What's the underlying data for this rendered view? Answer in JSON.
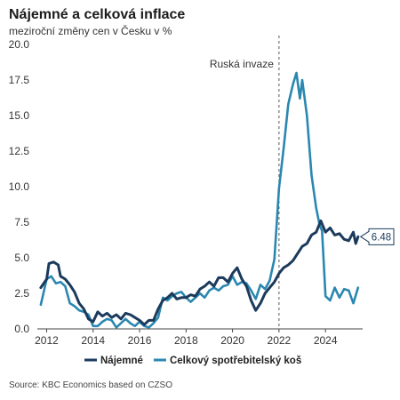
{
  "title": "Nájemné a celková inflace",
  "subtitle": "meziroční změny cen v Česku v  %",
  "source": "Source: KBC Economics based on CZSO",
  "chart_data": {
    "type": "line",
    "title": "Nájemné a celková inflace",
    "subtitle": "meziroční změny cen v Česku v  %",
    "xlabel": "",
    "ylabel": "",
    "xlim": [
      2011.6,
      2025.6
    ],
    "ylim": [
      0,
      20
    ],
    "x_ticks": [
      2012,
      2014,
      2016,
      2018,
      2020,
      2022,
      2024
    ],
    "y_ticks": [
      "0.0",
      "2.5",
      "5.0",
      "7.5",
      "10.0",
      "12.5",
      "15.0",
      "17.5",
      "20.0"
    ],
    "grid": false,
    "legend_position": "bottom",
    "annotation": {
      "label": "Ruská invaze",
      "x": 2022.0
    },
    "callout": {
      "label": "6.48",
      "x": 2025.4,
      "y": 6.48
    },
    "colors": {
      "rent": "#1b3a5c",
      "cpi": "#2a87b0"
    },
    "series": [
      {
        "name": "Nájemné",
        "key": "rent",
        "points": [
          [
            2011.75,
            2.9
          ],
          [
            2012.0,
            3.5
          ],
          [
            2012.1,
            4.6
          ],
          [
            2012.3,
            4.7
          ],
          [
            2012.5,
            4.5
          ],
          [
            2012.6,
            3.7
          ],
          [
            2012.8,
            3.5
          ],
          [
            2013.0,
            3.1
          ],
          [
            2013.2,
            2.6
          ],
          [
            2013.4,
            1.8
          ],
          [
            2013.6,
            1.4
          ],
          [
            2013.8,
            0.7
          ],
          [
            2014.0,
            0.5
          ],
          [
            2014.2,
            1.2
          ],
          [
            2014.4,
            0.9
          ],
          [
            2014.6,
            1.1
          ],
          [
            2014.8,
            0.8
          ],
          [
            2015.0,
            1.0
          ],
          [
            2015.2,
            0.7
          ],
          [
            2015.4,
            1.1
          ],
          [
            2015.6,
            1.0
          ],
          [
            2015.8,
            0.8
          ],
          [
            2016.0,
            0.6
          ],
          [
            2016.2,
            0.3
          ],
          [
            2016.4,
            0.6
          ],
          [
            2016.6,
            0.6
          ],
          [
            2016.8,
            1.4
          ],
          [
            2017.0,
            2.0
          ],
          [
            2017.2,
            2.2
          ],
          [
            2017.4,
            2.5
          ],
          [
            2017.6,
            2.1
          ],
          [
            2017.8,
            2.2
          ],
          [
            2018.0,
            2.2
          ],
          [
            2018.2,
            2.4
          ],
          [
            2018.4,
            2.3
          ],
          [
            2018.6,
            2.8
          ],
          [
            2018.8,
            3.0
          ],
          [
            2019.0,
            3.3
          ],
          [
            2019.2,
            3.0
          ],
          [
            2019.4,
            3.6
          ],
          [
            2019.6,
            3.6
          ],
          [
            2019.8,
            3.3
          ],
          [
            2020.0,
            3.9
          ],
          [
            2020.2,
            4.3
          ],
          [
            2020.4,
            3.5
          ],
          [
            2020.6,
            3.0
          ],
          [
            2020.8,
            2.0
          ],
          [
            2021.0,
            1.3
          ],
          [
            2021.2,
            1.8
          ],
          [
            2021.4,
            2.5
          ],
          [
            2021.6,
            2.9
          ],
          [
            2021.8,
            3.3
          ],
          [
            2022.0,
            3.9
          ],
          [
            2022.2,
            4.3
          ],
          [
            2022.4,
            4.5
          ],
          [
            2022.6,
            4.8
          ],
          [
            2022.8,
            5.3
          ],
          [
            2023.0,
            5.8
          ],
          [
            2023.2,
            6.0
          ],
          [
            2023.4,
            6.6
          ],
          [
            2023.6,
            6.8
          ],
          [
            2023.8,
            7.6
          ],
          [
            2024.0,
            6.8
          ],
          [
            2024.2,
            7.1
          ],
          [
            2024.4,
            6.6
          ],
          [
            2024.6,
            6.7
          ],
          [
            2024.8,
            6.3
          ],
          [
            2025.0,
            6.2
          ],
          [
            2025.2,
            6.8
          ],
          [
            2025.3,
            6.0
          ],
          [
            2025.4,
            6.48
          ]
        ]
      },
      {
        "name": "Celkový spotřebitelský koš",
        "key": "cpi",
        "points": [
          [
            2011.75,
            1.7
          ],
          [
            2012.0,
            3.5
          ],
          [
            2012.2,
            3.7
          ],
          [
            2012.4,
            3.2
          ],
          [
            2012.6,
            3.3
          ],
          [
            2012.8,
            3.0
          ],
          [
            2013.0,
            1.8
          ],
          [
            2013.2,
            1.6
          ],
          [
            2013.4,
            1.3
          ],
          [
            2013.6,
            1.2
          ],
          [
            2013.8,
            1.0
          ],
          [
            2014.0,
            0.2
          ],
          [
            2014.2,
            0.2
          ],
          [
            2014.4,
            0.5
          ],
          [
            2014.6,
            0.7
          ],
          [
            2014.8,
            0.6
          ],
          [
            2015.0,
            0.1
          ],
          [
            2015.2,
            0.4
          ],
          [
            2015.4,
            0.7
          ],
          [
            2015.6,
            0.4
          ],
          [
            2015.8,
            0.2
          ],
          [
            2016.0,
            0.5
          ],
          [
            2016.2,
            0.2
          ],
          [
            2016.4,
            0.1
          ],
          [
            2016.6,
            0.4
          ],
          [
            2016.8,
            0.8
          ],
          [
            2017.0,
            2.2
          ],
          [
            2017.2,
            2.0
          ],
          [
            2017.4,
            2.3
          ],
          [
            2017.6,
            2.5
          ],
          [
            2017.8,
            2.6
          ],
          [
            2018.0,
            2.2
          ],
          [
            2018.2,
            1.9
          ],
          [
            2018.4,
            2.2
          ],
          [
            2018.6,
            2.5
          ],
          [
            2018.8,
            2.2
          ],
          [
            2019.0,
            2.7
          ],
          [
            2019.2,
            2.9
          ],
          [
            2019.4,
            2.7
          ],
          [
            2019.6,
            3.0
          ],
          [
            2019.8,
            3.1
          ],
          [
            2020.0,
            3.7
          ],
          [
            2020.2,
            3.1
          ],
          [
            2020.4,
            3.3
          ],
          [
            2020.6,
            3.2
          ],
          [
            2020.8,
            2.7
          ],
          [
            2021.0,
            2.1
          ],
          [
            2021.2,
            3.1
          ],
          [
            2021.4,
            2.8
          ],
          [
            2021.6,
            3.4
          ],
          [
            2021.8,
            4.9
          ],
          [
            2022.0,
            9.9
          ],
          [
            2022.2,
            12.7
          ],
          [
            2022.4,
            15.8
          ],
          [
            2022.6,
            17.2
          ],
          [
            2022.75,
            18.0
          ],
          [
            2022.9,
            16.2
          ],
          [
            2023.0,
            17.5
          ],
          [
            2023.2,
            15.0
          ],
          [
            2023.4,
            10.8
          ],
          [
            2023.6,
            8.5
          ],
          [
            2023.75,
            7.3
          ],
          [
            2023.85,
            6.9
          ],
          [
            2024.0,
            2.3
          ],
          [
            2024.2,
            2.0
          ],
          [
            2024.4,
            2.9
          ],
          [
            2024.6,
            2.2
          ],
          [
            2024.8,
            2.8
          ],
          [
            2025.0,
            2.7
          ],
          [
            2025.2,
            1.8
          ],
          [
            2025.4,
            2.9
          ]
        ]
      }
    ]
  }
}
